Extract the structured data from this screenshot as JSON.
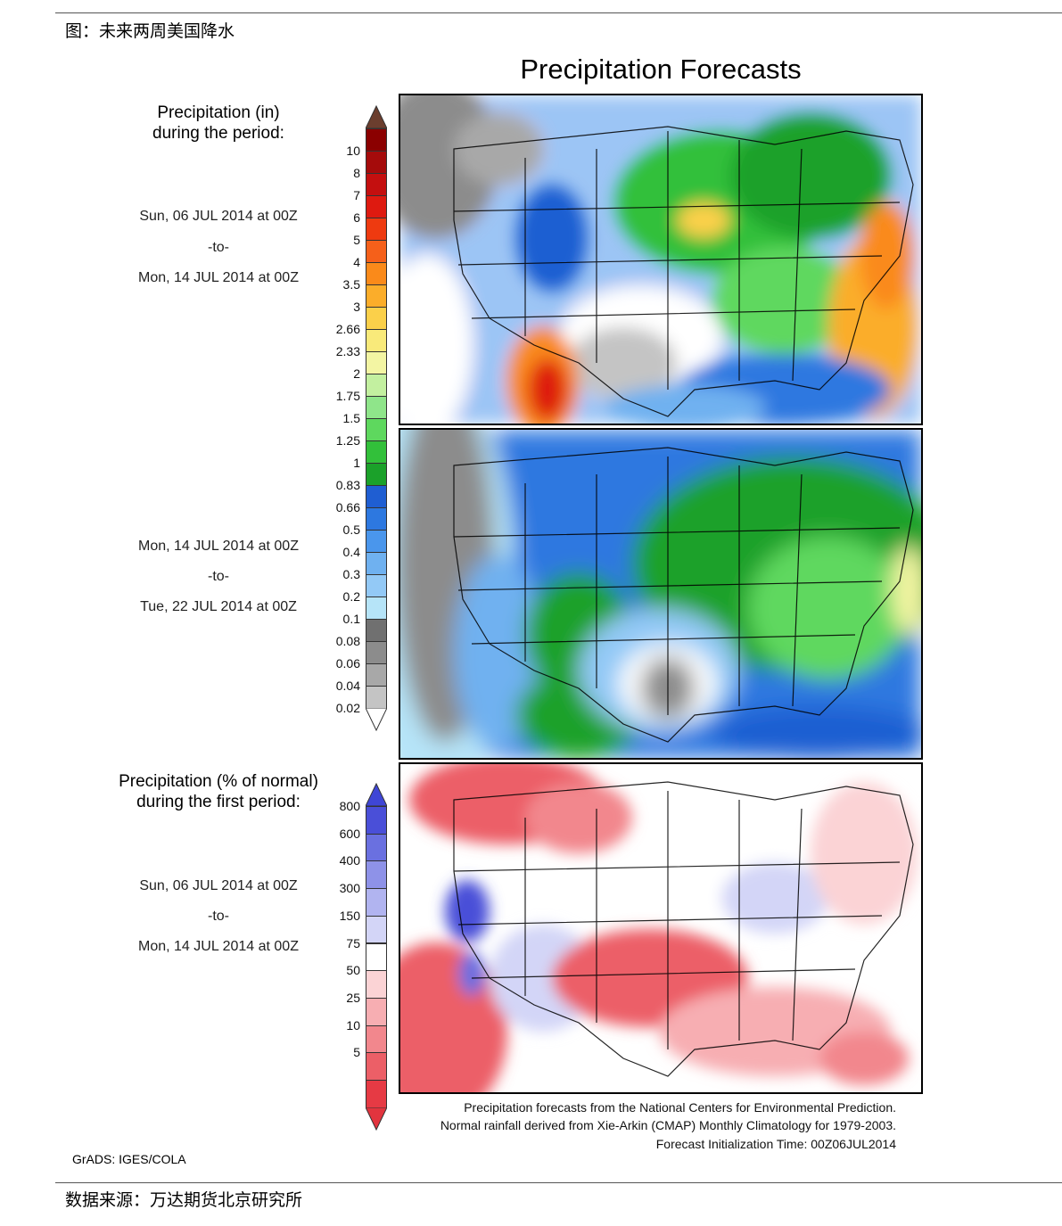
{
  "header": {
    "caption": "图：未来两周美国降水"
  },
  "footer": {
    "source": "数据来源：万达期货北京研究所",
    "software": "GrADS: IGES/COLA"
  },
  "figure": {
    "title": "Precipitation Forecasts",
    "precip_legend": {
      "title_line1": "Precipitation (in)",
      "title_line2": "during the period:",
      "ticks": [
        "10",
        "8",
        "7",
        "6",
        "5",
        "4",
        "3.5",
        "3",
        "2.66",
        "2.33",
        "2",
        "1.75",
        "1.5",
        "1.25",
        "1",
        "0.83",
        "0.66",
        "0.5",
        "0.4",
        "0.3",
        "0.2",
        "0.1",
        "0.08",
        "0.06",
        "0.04",
        "0.02"
      ],
      "colors": [
        "#8b0000",
        "#a50b0b",
        "#c40f0f",
        "#de1a10",
        "#ee3a10",
        "#f5601a",
        "#fa8a1a",
        "#fbad2a",
        "#fbd04a",
        "#f9ea7a",
        "#f3f5a3",
        "#c3f0a0",
        "#8fe58a",
        "#5ed85e",
        "#32c03a",
        "#1ba12a",
        "#1f5ed2",
        "#2d78e0",
        "#4a96ec",
        "#6fb1f0",
        "#93c9f6",
        "#b6e4f8",
        "#707070",
        "#8c8c8c",
        "#a8a8a8",
        "#c4c4c4"
      ],
      "top_arrow_color": "#6b3e2e",
      "bottom_arrow_color": "#ffffff"
    },
    "period1": {
      "start": "Sun, 06 JUL 2014 at 00Z",
      "sep": "-to-",
      "end": "Mon, 14 JUL 2014 at 00Z"
    },
    "period2": {
      "start": "Mon, 14 JUL 2014 at 00Z",
      "sep": "-to-",
      "end": "Tue, 22 JUL 2014 at 00Z"
    },
    "pct_legend": {
      "title_line1": "Precipitation (% of normal)",
      "title_line2": "during the first period:",
      "ticks": [
        "800",
        "600",
        "400",
        "300",
        "150",
        "75",
        "50",
        "25",
        "10",
        "5"
      ],
      "colors": [
        "#4a4fd8",
        "#6a70e0",
        "#8e92e8",
        "#b1b4f0",
        "#d3d5f7",
        "#ffffff",
        "#fbd3d5",
        "#f7aeb2",
        "#f2878d",
        "#ec5f67",
        "#e63a44"
      ],
      "top_arrow_color": "#3f46d6",
      "bottom_arrow_color": "#e2343e"
    },
    "period3": {
      "start": "Sun, 06 JUL 2014 at 00Z",
      "sep": "-to-",
      "end": "Mon, 14 JUL 2014 at 00Z"
    },
    "credits": [
      "Precipitation forecasts from the National Centers for Environmental Prediction.",
      "Normal rainfall derived from Xie-Arkin (CMAP) Monthly Climatology for 1979-2003.",
      "Forecast Initialization Time: 00Z06JUL2014"
    ]
  }
}
